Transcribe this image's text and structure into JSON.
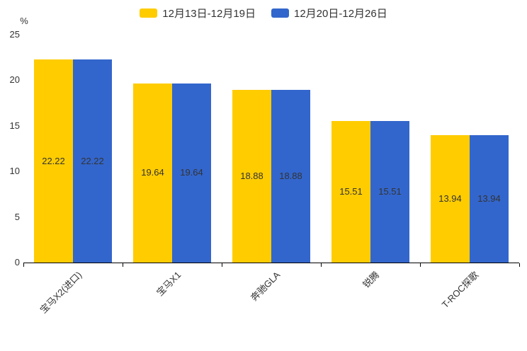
{
  "chart_data": {
    "type": "bar",
    "title": "",
    "unit_label": "%",
    "categories": [
      "宝马X2(进口)",
      "宝马X1",
      "奔驰GLA",
      "锐腾",
      "T-ROC探歌"
    ],
    "series": [
      {
        "name": "12月13日-12月19日",
        "color": "#FFCC00",
        "values": [
          22.22,
          19.64,
          18.88,
          15.51,
          13.94
        ]
      },
      {
        "name": "12月20日-12月26日",
        "color": "#3366CC",
        "values": [
          22.22,
          19.64,
          18.88,
          15.51,
          13.94
        ]
      }
    ],
    "value_labels_shown": true,
    "y_ticks": [
      0,
      5,
      10,
      15,
      20,
      25
    ],
    "ylim": [
      0,
      25
    ],
    "grid": false,
    "legend_position": "top",
    "colors": {
      "axis": "#000000",
      "tick_text": "#333333",
      "value_label_text": "#333333",
      "legend_text": "#333333"
    }
  }
}
